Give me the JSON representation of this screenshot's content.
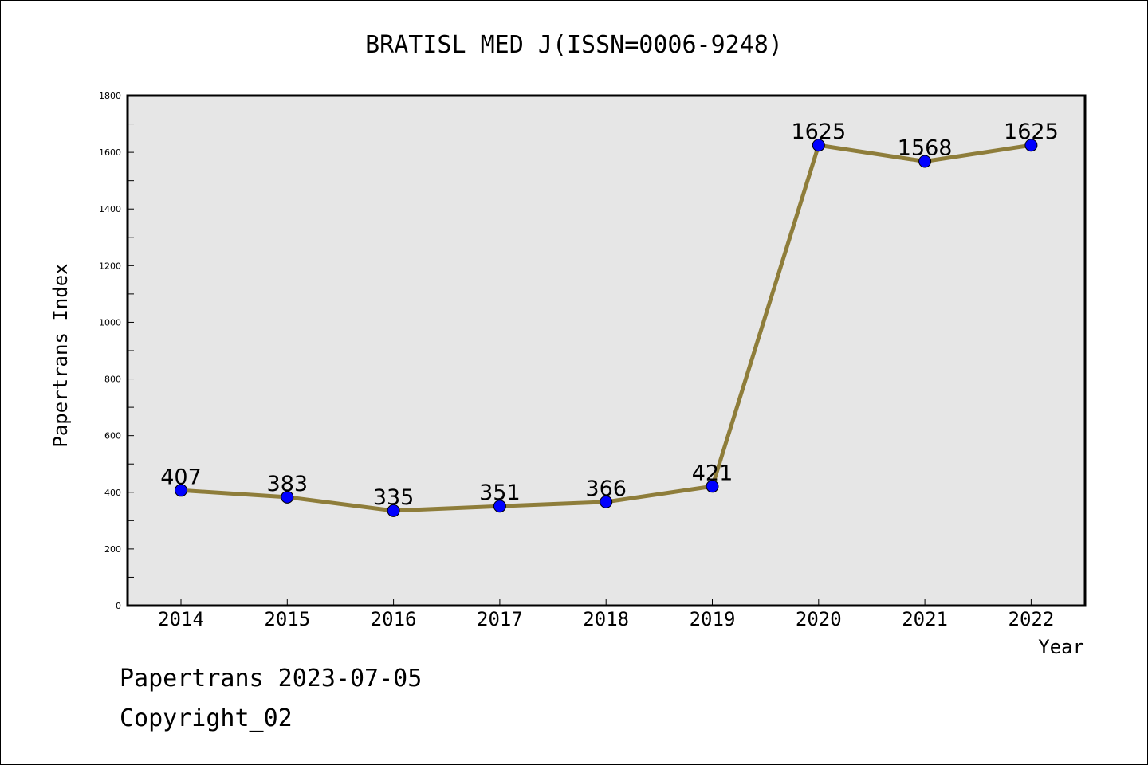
{
  "chart_data": {
    "type": "line",
    "title": "BRATISL MED J(ISSN=0006-9248)",
    "xlabel": "Year",
    "ylabel": "Papertrans Index",
    "categories": [
      "2014",
      "2015",
      "2016",
      "2017",
      "2018",
      "2019",
      "2020",
      "2021",
      "2022"
    ],
    "series": [
      {
        "values": [
          407,
          383,
          335,
          351,
          366,
          421,
          1625,
          1568,
          1625
        ]
      }
    ],
    "data_labels": [
      "407",
      "383",
      "335",
      "351",
      "366",
      "421",
      "1625",
      "1568",
      "1625"
    ],
    "ylim": [
      0,
      1800
    ],
    "yticks": [
      0,
      200,
      400,
      600,
      800,
      1000,
      1200,
      1400,
      1600,
      1800
    ],
    "ytick_labels": [
      "0",
      "200",
      "400",
      "600",
      "800",
      "1000",
      "1200",
      "1400",
      "1600",
      "1800"
    ],
    "grid": false,
    "legend": "none",
    "colors": {
      "line": "#8e7d3a",
      "marker": "#0000ff",
      "plot_background": "#e6e6e6"
    }
  },
  "footer": {
    "line1": "Papertrans 2023-07-05",
    "line2": "Copyright_02"
  }
}
